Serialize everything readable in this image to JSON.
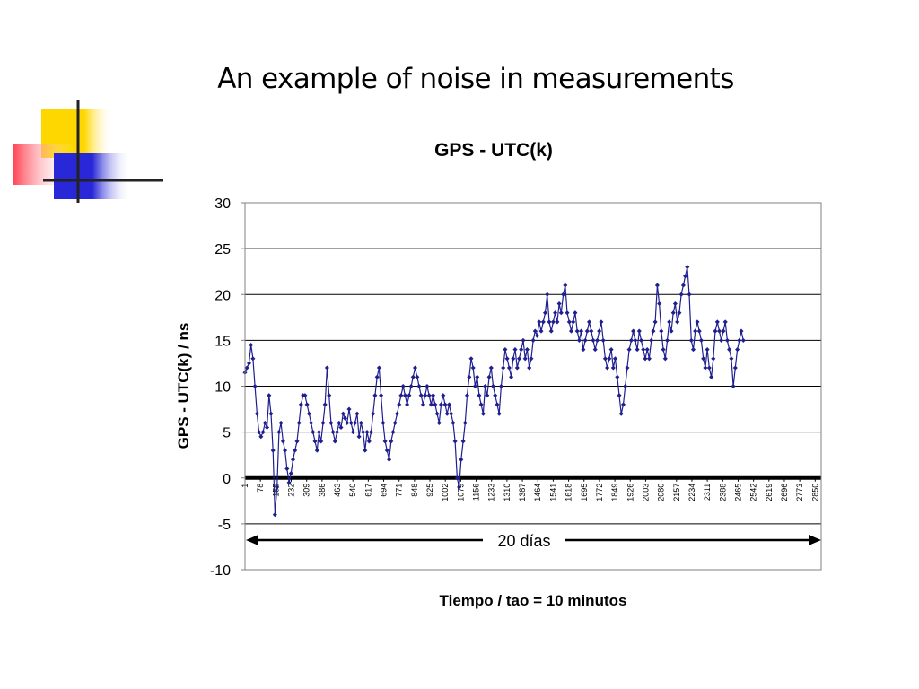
{
  "slide": {
    "title": "An example of noise in measurements"
  },
  "colors": {
    "series": "#1f1f8f",
    "deco_yellow": "#ffd700",
    "deco_red": "#ff4050",
    "deco_blue": "#2828d8"
  },
  "chart_data": {
    "type": "line",
    "title": "GPS - UTC(k)",
    "xlabel": "Tiempo / tao = 10 minutos",
    "ylabel": "GPS - UTC(k) / ns",
    "ylim": [
      -10,
      30
    ],
    "yticks": [
      -10,
      -5,
      0,
      5,
      10,
      15,
      20,
      25,
      30
    ],
    "xlim": [
      1,
      2880
    ],
    "x_tick_labels": [
      "1",
      "78",
      "155",
      "232",
      "309",
      "386",
      "463",
      "540",
      "617",
      "694",
      "771",
      "848",
      "925",
      "1002",
      "1079",
      "1156",
      "1233",
      "1310",
      "1387",
      "1464",
      "1541",
      "1618",
      "1695",
      "1772",
      "1849",
      "1926",
      "2003",
      "2080",
      "2157",
      "2234",
      "2311",
      "2388",
      "2465",
      "2542",
      "2619",
      "2696",
      "2773",
      "2850"
    ],
    "grid": "horizontal",
    "annotation": "20 días",
    "series": [
      {
        "values_step": 10,
        "values": [
          11.5,
          12,
          12.5,
          14.5,
          13,
          10,
          7,
          5,
          4.5,
          5,
          6,
          5.5,
          9,
          7,
          3,
          -4,
          -1,
          5,
          6,
          4,
          3,
          1,
          -0.5,
          0.5,
          2,
          3,
          4,
          6,
          8,
          9,
          9,
          8,
          7,
          6,
          5,
          4,
          3,
          5,
          4,
          6,
          8,
          12,
          9,
          6,
          5,
          4,
          5,
          6,
          5.5,
          7,
          6.5,
          6,
          7.5,
          6,
          5,
          6,
          7,
          4.5,
          6,
          5,
          3,
          5,
          4,
          5,
          7,
          9,
          11,
          12,
          9,
          6,
          4,
          3,
          2,
          4,
          5,
          6,
          7,
          8,
          9,
          10,
          9,
          8,
          9,
          10,
          11,
          12,
          11,
          10,
          9,
          8,
          9,
          10,
          9,
          8,
          9,
          8,
          7,
          6,
          8,
          9,
          8,
          7,
          8,
          7,
          6,
          4,
          0,
          -1,
          2,
          4,
          6,
          9,
          11,
          13,
          12,
          10,
          11,
          9,
          8,
          7,
          10,
          9,
          11,
          12,
          10,
          9,
          8,
          7,
          10,
          12,
          14,
          13,
          12,
          11,
          13,
          14,
          12,
          13,
          14,
          15,
          13,
          14,
          12,
          13,
          15,
          16,
          15.5,
          17,
          16,
          17,
          18,
          20,
          17,
          16,
          17,
          18,
          17,
          19,
          18,
          20,
          21,
          18,
          17,
          16,
          17,
          18,
          16,
          15,
          16,
          14,
          15,
          16,
          17,
          16,
          15,
          14,
          15,
          16,
          17,
          15,
          13,
          12,
          13,
          14,
          12,
          13,
          11,
          9,
          7,
          8,
          10,
          12,
          14,
          15,
          16,
          15,
          14,
          16,
          15,
          14,
          13,
          14,
          13,
          15,
          16,
          17,
          21,
          19,
          16,
          14,
          13,
          15,
          17,
          16,
          18,
          19,
          17,
          18,
          20,
          21,
          22,
          23,
          20,
          15,
          14,
          16,
          17,
          16,
          15,
          13,
          12,
          14,
          12,
          11,
          13,
          16,
          17,
          16,
          15,
          16,
          17,
          15,
          14,
          13,
          10,
          12,
          14,
          15,
          16,
          15
        ]
      }
    ]
  }
}
